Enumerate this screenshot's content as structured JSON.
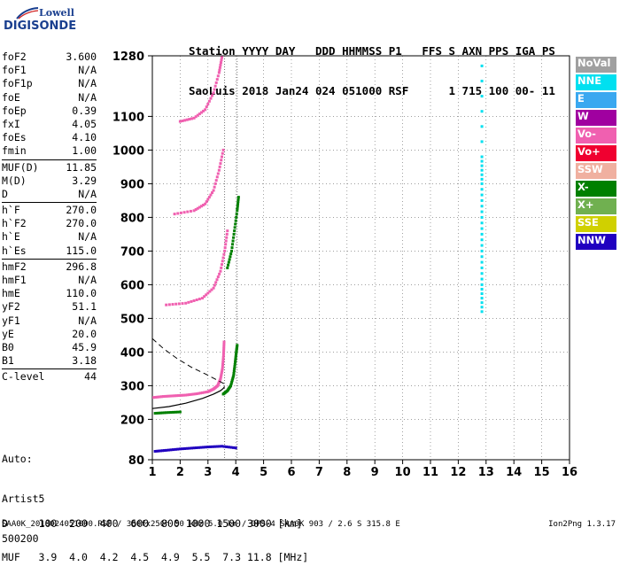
{
  "logo": {
    "line1": "Lowell",
    "line2": "DIGISONDE"
  },
  "header": {
    "line1": "Station YYYY DAY   DDD HHMMSS P1   FFS S AXN PPS IGA PS",
    "line2": "SaoLuis 2018 Jan24 024 051000 RSF      1 715 100 00- 11"
  },
  "params": [
    [
      {
        "k": "foF2",
        "v": "3.600"
      },
      {
        "k": "foF1",
        "v": "N/A"
      },
      {
        "k": "foF1p",
        "v": "N/A"
      },
      {
        "k": "foE",
        "v": "N/A"
      },
      {
        "k": "foEp",
        "v": "0.39"
      },
      {
        "k": "fxI",
        "v": "4.05"
      },
      {
        "k": "foEs",
        "v": "4.10"
      },
      {
        "k": "fmin",
        "v": "1.00"
      }
    ],
    [
      {
        "k": "MUF(D)",
        "v": "11.85"
      },
      {
        "k": "M(D)",
        "v": "3.29"
      },
      {
        "k": "D",
        "v": "N/A"
      }
    ],
    [
      {
        "k": "h`F",
        "v": "270.0"
      },
      {
        "k": "h`F2",
        "v": "270.0"
      },
      {
        "k": "h`E",
        "v": "N/A"
      },
      {
        "k": "h`Es",
        "v": "115.0"
      }
    ],
    [
      {
        "k": "hmF2",
        "v": "296.8"
      },
      {
        "k": "hmF1",
        "v": "N/A"
      },
      {
        "k": "hmE",
        "v": "110.0"
      },
      {
        "k": "yF2",
        "v": "51.1"
      },
      {
        "k": "yF1",
        "v": "N/A"
      },
      {
        "k": "yE",
        "v": "20.0"
      },
      {
        "k": "B0",
        "v": "45.9"
      },
      {
        "k": "B1",
        "v": "3.18"
      }
    ],
    [
      {
        "k": "C-level",
        "v": "44"
      }
    ]
  ],
  "auto": {
    "line1": "Auto:",
    "line2": "Artist5",
    "line3": "500200"
  },
  "legend": [
    {
      "label": "NoVal",
      "color": "#a0a0a0"
    },
    {
      "label": "NNE",
      "color": "#00e0f0"
    },
    {
      "label": "E",
      "color": "#3aa8f0"
    },
    {
      "label": "W",
      "color": "#a000a0"
    },
    {
      "label": "Vo-",
      "color": "#f060b0"
    },
    {
      "label": "Vo+",
      "color": "#f00030"
    },
    {
      "label": "SSW",
      "color": "#f0b0a0"
    },
    {
      "label": "X-",
      "color": "#008000"
    },
    {
      "label": "X+",
      "color": "#70b050"
    },
    {
      "label": "SSE",
      "color": "#d0d000"
    },
    {
      "label": "NNW",
      "color": "#2000c0"
    }
  ],
  "dmuf": {
    "d_line": "D     100  200  400  600  800 1000 1500 3000 [km]",
    "muf_line": "MUF   3.9  4.0  4.2  4.5  4.9  5.5  7.3 11.8 [MHz]"
  },
  "footer": {
    "text": "SAA0K_2018024051000.RSF / 300fx256h 50 kHz 5.0 km / DPS-4 SAA0K 903 / 2.6 S 315.8 E",
    "version": "Ion2Png 1.3.17"
  },
  "chart_data": {
    "type": "scatter",
    "title": "",
    "xlabel": "",
    "ylabel": "",
    "xlim": [
      1,
      16
    ],
    "ylim": [
      80,
      1280
    ],
    "x_ticks": [
      1,
      2,
      3,
      4,
      5,
      6,
      7,
      8,
      9,
      10,
      11,
      12,
      13,
      14,
      15,
      16
    ],
    "y_ticks": [
      80,
      200,
      300,
      400,
      500,
      600,
      700,
      800,
      900,
      1000,
      1100,
      1280
    ],
    "foF2_marker": 3.6,
    "fxI_marker": 4.05,
    "traces": [
      {
        "name": "O trace F2",
        "mode": "Vo-",
        "points": [
          [
            1.05,
            265
          ],
          [
            1.4,
            268
          ],
          [
            1.8,
            270
          ],
          [
            2.2,
            272
          ],
          [
            2.6,
            276
          ],
          [
            3.0,
            282
          ],
          [
            3.2,
            290
          ],
          [
            3.35,
            300
          ],
          [
            3.45,
            320
          ],
          [
            3.52,
            350
          ],
          [
            3.56,
            390
          ],
          [
            3.58,
            430
          ]
        ]
      },
      {
        "name": "X trace F2",
        "mode": "X-",
        "points": [
          [
            3.55,
            275
          ],
          [
            3.7,
            285
          ],
          [
            3.82,
            300
          ],
          [
            3.92,
            330
          ],
          [
            3.98,
            370
          ],
          [
            4.02,
            400
          ],
          [
            4.05,
            420
          ]
        ]
      },
      {
        "name": "O 2nd hop",
        "mode": "Vo-",
        "points": [
          [
            1.5,
            540
          ],
          [
            2.2,
            545
          ],
          [
            2.8,
            560
          ],
          [
            3.2,
            590
          ],
          [
            3.45,
            640
          ],
          [
            3.6,
            700
          ],
          [
            3.7,
            760
          ]
        ]
      },
      {
        "name": "X 2nd hop",
        "mode": "X-",
        "points": [
          [
            3.7,
            650
          ],
          [
            3.85,
            700
          ],
          [
            3.95,
            760
          ],
          [
            4.05,
            820
          ],
          [
            4.1,
            860
          ]
        ]
      },
      {
        "name": "O 3rd hop",
        "mode": "Vo-",
        "points": [
          [
            1.8,
            810
          ],
          [
            2.5,
            820
          ],
          [
            2.9,
            840
          ],
          [
            3.2,
            880
          ],
          [
            3.4,
            940
          ],
          [
            3.55,
            1000
          ]
        ]
      },
      {
        "name": "O 4th hop",
        "mode": "Vo-",
        "points": [
          [
            2.0,
            1085
          ],
          [
            2.5,
            1095
          ],
          [
            2.9,
            1120
          ],
          [
            3.2,
            1170
          ],
          [
            3.4,
            1230
          ],
          [
            3.5,
            1275
          ]
        ]
      },
      {
        "name": "Es trace",
        "mode": "NNW",
        "points": [
          [
            1.1,
            105
          ],
          [
            1.5,
            108
          ],
          [
            2.0,
            112
          ],
          [
            2.5,
            115
          ],
          [
            3.0,
            118
          ],
          [
            3.5,
            120
          ],
          [
            4.0,
            115
          ]
        ]
      },
      {
        "name": "E low",
        "mode": "X-",
        "points": [
          [
            1.1,
            218
          ],
          [
            1.5,
            220
          ],
          [
            2.0,
            222
          ]
        ]
      },
      {
        "name": "oblique",
        "mode": "NNE",
        "points": [
          [
            12.85,
            520
          ],
          [
            12.85,
            600
          ],
          [
            12.85,
            700
          ],
          [
            12.85,
            800
          ],
          [
            12.85,
            900
          ],
          [
            12.85,
            980
          ],
          [
            12.85,
            1250
          ]
        ]
      }
    ],
    "profile": {
      "name": "electron density profile",
      "points": [
        [
          1,
          232
        ],
        [
          1.6,
          238
        ],
        [
          2.2,
          248
        ],
        [
          2.8,
          262
        ],
        [
          3.2,
          275
        ],
        [
          3.45,
          285
        ],
        [
          3.55,
          292
        ],
        [
          3.6,
          297
        ]
      ]
    },
    "profile_dashed": {
      "points": [
        [
          1,
          440
        ],
        [
          1.4,
          410
        ],
        [
          1.9,
          380
        ],
        [
          2.4,
          355
        ],
        [
          2.9,
          335
        ],
        [
          3.3,
          318
        ],
        [
          3.6,
          305
        ]
      ]
    },
    "grid": true
  }
}
